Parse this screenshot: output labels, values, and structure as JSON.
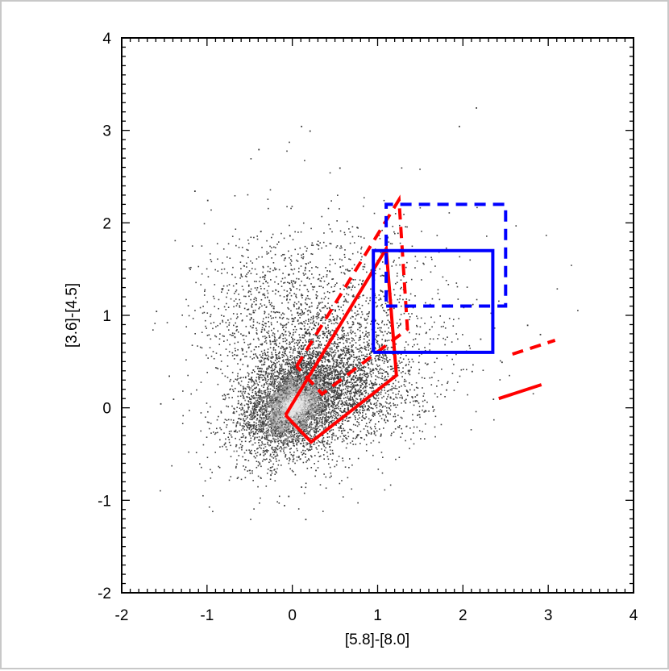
{
  "chart_data": {
    "type": "scatter",
    "title": "",
    "xlabel": "[5.8]-[8.0]",
    "ylabel": "[3.6]-[4.5]",
    "xlim": [
      -2,
      4
    ],
    "ylim": [
      -2,
      4
    ],
    "x_ticks": [
      "-2",
      "-1",
      "0",
      "1",
      "2",
      "3",
      "4"
    ],
    "y_ticks": [
      "-2",
      "-1",
      "0",
      "1",
      "2",
      "3",
      "4"
    ],
    "grid": false,
    "point_color": "#3c3c3c",
    "clusters": [
      {
        "cx": 0.0,
        "cy": 0.05,
        "sx": 0.32,
        "sy": 0.28,
        "n": 2600,
        "rho": 0.3
      },
      {
        "cx": 0.25,
        "cy": 0.3,
        "sx": 0.5,
        "sy": 0.45,
        "n": 1900,
        "rho": 0.35
      },
      {
        "cx": 0.7,
        "cy": 0.2,
        "sx": 0.45,
        "sy": 0.3,
        "n": 1100,
        "rho": 0.0
      },
      {
        "cx": -0.3,
        "cy": 1.0,
        "sx": 0.45,
        "sy": 0.45,
        "n": 700,
        "rho": 0.0
      },
      {
        "cx": 0.6,
        "cy": 1.2,
        "sx": 0.55,
        "sy": 0.5,
        "n": 500,
        "rho": 0.0
      },
      {
        "cx": 1.4,
        "cy": 1.0,
        "sx": 0.6,
        "sy": 0.5,
        "n": 160,
        "rho": 0.0
      }
    ],
    "outliers": [
      [
        -1.15,
        2.35
      ],
      [
        -1.0,
        2.25
      ],
      [
        0.1,
        3.05
      ],
      [
        0.2,
        3.0
      ],
      [
        0.55,
        2.6
      ],
      [
        1.95,
        3.05
      ],
      [
        2.15,
        3.25
      ],
      [
        -0.4,
        2.8
      ],
      [
        -1.6,
        1.05
      ],
      [
        -1.45,
        0.35
      ],
      [
        -1.4,
        0.1
      ],
      [
        -1.55,
        0.05
      ],
      [
        -0.1,
        -1.05
      ],
      [
        0.15,
        -1.2
      ],
      [
        -0.05,
        -0.95
      ],
      [
        0.1,
        -0.85
      ],
      [
        2.75,
        0.9
      ],
      [
        2.9,
        0.8
      ],
      [
        2.35,
        0.1
      ],
      [
        2.45,
        0.5
      ],
      [
        1.8,
        0.2
      ],
      [
        2.1,
        0.4
      ],
      [
        2.5,
        1.25
      ],
      [
        2.2,
        0.75
      ]
    ],
    "regions": [
      {
        "name": "",
        "color": "#ff0000",
        "dash": false,
        "points": [
          [
            -0.08,
            -0.08
          ],
          [
            1.1,
            1.72
          ],
          [
            1.22,
            0.35
          ],
          [
            0.22,
            -0.37
          ],
          [
            -0.08,
            -0.08
          ]
        ]
      },
      {
        "name": "",
        "color": "#ff0000",
        "dash": true,
        "points": [
          [
            0.05,
            0.45
          ],
          [
            1.25,
            2.25
          ],
          [
            1.35,
            0.85
          ],
          [
            0.35,
            0.15
          ],
          [
            0.05,
            0.45
          ]
        ]
      },
      {
        "name": "",
        "color": "#0000ff",
        "dash": false,
        "points": [
          [
            0.95,
            0.6
          ],
          [
            2.35,
            0.6
          ],
          [
            2.35,
            1.7
          ],
          [
            0.95,
            1.7
          ],
          [
            0.95,
            0.6
          ]
        ]
      },
      {
        "name": "",
        "color": "#0000ff",
        "dash": true,
        "points": [
          [
            1.1,
            1.1
          ],
          [
            2.5,
            1.1
          ],
          [
            2.5,
            2.2
          ],
          [
            1.1,
            2.2
          ],
          [
            1.1,
            1.1
          ]
        ]
      }
    ],
    "vectors": [
      {
        "color": "#ff0000",
        "dash": false,
        "from": [
          2.42,
          0.1
        ],
        "to": [
          2.92,
          0.25
        ]
      },
      {
        "color": "#ff0000",
        "dash": true,
        "from": [
          2.58,
          0.58
        ],
        "to": [
          3.08,
          0.73
        ]
      }
    ]
  }
}
